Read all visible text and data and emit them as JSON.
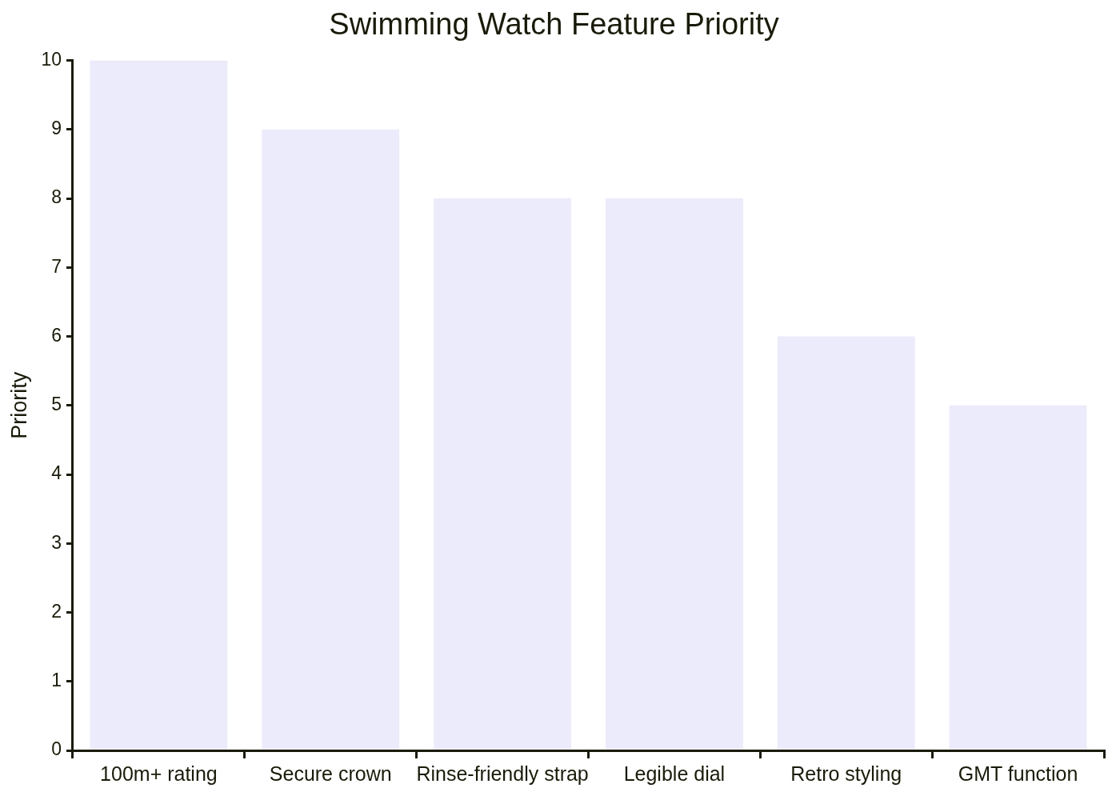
{
  "chart_data": {
    "type": "bar",
    "title": "Swimming Watch Feature Priority",
    "ylabel": "Priority",
    "categories": [
      "100m+ rating",
      "Secure crown",
      "Rinse-friendly strap",
      "Legible dial",
      "Retro styling",
      "GMT function"
    ],
    "values": [
      10,
      9,
      8,
      8,
      6,
      5
    ],
    "color": "#ebebfb",
    "ylim": [
      0,
      10
    ],
    "yticks": [
      0,
      1,
      2,
      3,
      4,
      5,
      6,
      7,
      8,
      9,
      10
    ],
    "grid": false,
    "legend": false
  }
}
